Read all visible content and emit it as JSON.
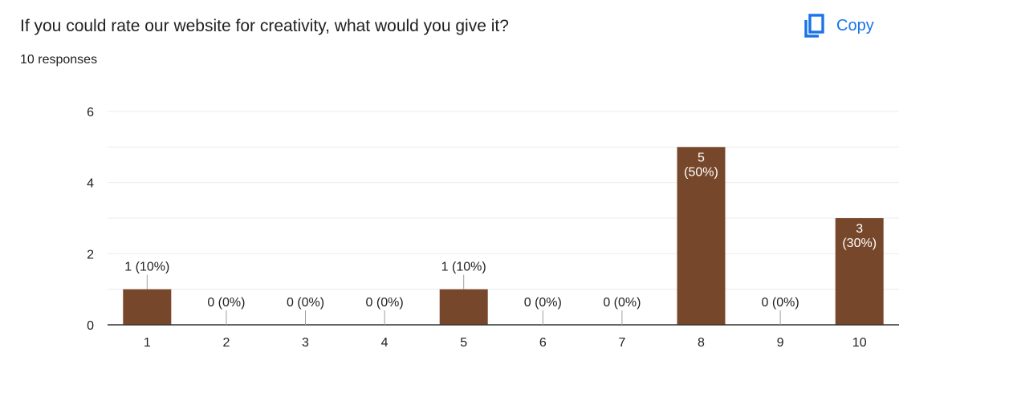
{
  "question": {
    "title": "If you could rate our website for creativity, what would you give it?",
    "responses": "10 responses"
  },
  "copy_button": {
    "label": "Copy",
    "icon": "copy-icon",
    "color": "#1a73e8"
  },
  "chart_data": {
    "type": "bar",
    "categories": [
      "1",
      "2",
      "3",
      "4",
      "5",
      "6",
      "7",
      "8",
      "9",
      "10"
    ],
    "values": [
      1,
      0,
      0,
      0,
      1,
      0,
      0,
      5,
      0,
      3
    ],
    "data_labels": [
      "1 (10%)",
      "0 (0%)",
      "0 (0%)",
      "0 (0%)",
      "1 (10%)",
      "0 (0%)",
      "0 (0%)",
      "5 (50%)",
      "0 (0%)",
      "3 (30%)"
    ],
    "percentages": [
      "10%",
      "0%",
      "0%",
      "0%",
      "10%",
      "0%",
      "0%",
      "50%",
      "0%",
      "30%"
    ],
    "title": "",
    "xlabel": "",
    "ylabel": "",
    "ylim": [
      0,
      6
    ],
    "yticks": [
      0,
      2,
      4,
      6
    ],
    "grid": true,
    "bar_color": "#77472b",
    "gridline_color": "#ebebeb",
    "axis_color": "#333333"
  }
}
